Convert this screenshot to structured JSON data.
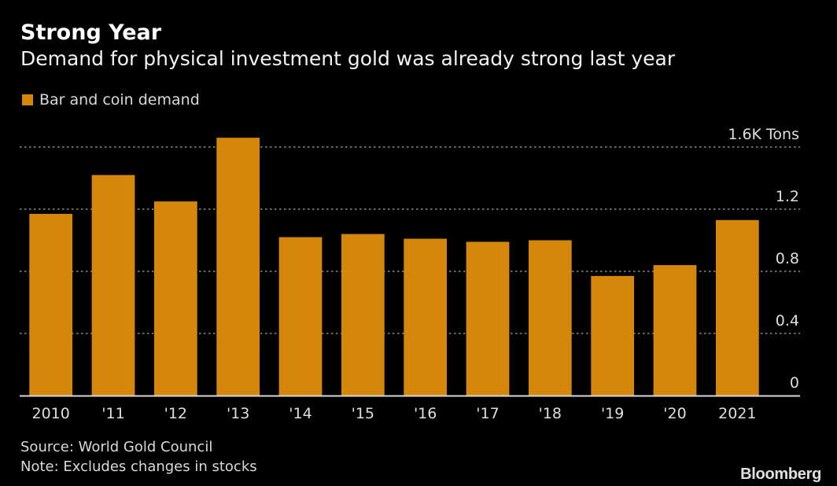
{
  "header": {
    "title": "Strong Year",
    "subtitle": "Demand for physical investment gold was already strong last year"
  },
  "footer": {
    "source": "Source: World Gold Council",
    "note": "Note: Excludes changes in stocks",
    "brand": "Bloomberg"
  },
  "chart_data": {
    "type": "bar",
    "title": "Strong Year",
    "subtitle": "Demand for physical investment gold was already strong last year",
    "xlabel": "",
    "ylabel": "Tons (thousands)",
    "unit_label": "1.6K Tons",
    "categories": [
      "2010",
      "'11",
      "'12",
      "'13",
      "'14",
      "'15",
      "'16",
      "'17",
      "'18",
      "'19",
      "'20",
      "2021"
    ],
    "series": [
      {
        "name": "Bar and coin demand",
        "color": "#d4870b",
        "values": [
          1.17,
          1.42,
          1.25,
          1.66,
          1.02,
          1.04,
          1.01,
          0.99,
          1.0,
          0.77,
          0.84,
          1.13
        ]
      }
    ],
    "ylim": [
      0,
      1.6
    ],
    "yticks": [
      0,
      0.4,
      0.8,
      1.2,
      1.6
    ],
    "ytick_labels": [
      "0",
      "0.4",
      "0.8",
      "1.2",
      "1.6K Tons"
    ],
    "grid": true,
    "grid_style": "dotted",
    "y_axis_side": "right",
    "legend_position": "top-left"
  }
}
